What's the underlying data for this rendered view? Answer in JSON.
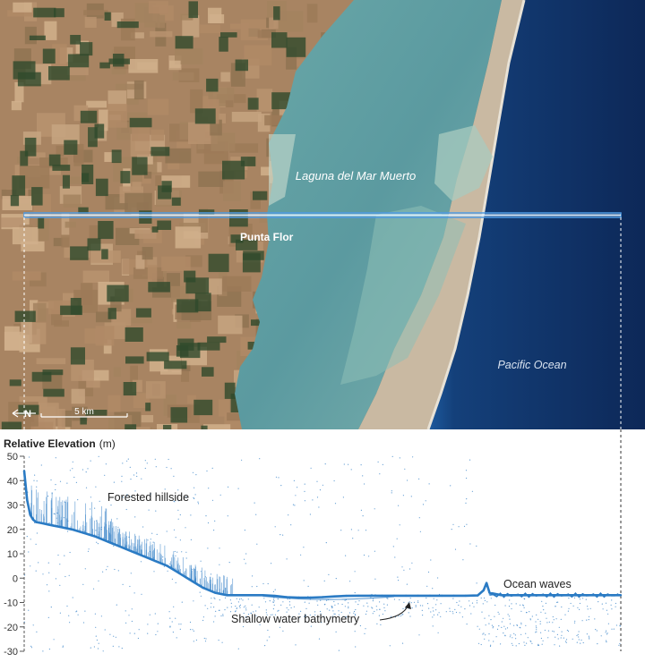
{
  "map": {
    "labels": {
      "lagoon": "Laguna del Mar Muerto",
      "town": "Punta Flor",
      "ocean": "Pacific Ocean"
    },
    "north_symbol": "N",
    "scale_bar_label": "5 km",
    "colors": {
      "land": "#a88462",
      "vegetation": "#2f4a2c",
      "lagoon": "#5f9fa2",
      "ocean": "#0e2a5c",
      "sandbar": "#c9b9a2",
      "transect": "#4f9be3"
    }
  },
  "chart_data": {
    "type": "scatter",
    "title": "Relative Elevation",
    "title_unit": "(m)",
    "ylim": [
      -30,
      50
    ],
    "yticks": [
      50,
      40,
      30,
      20,
      10,
      0,
      -10,
      -20,
      -30
    ],
    "xlim": [
      0,
      100
    ],
    "grid": false,
    "color": "#2b7bc4",
    "series": [
      {
        "x": [
          0,
          0.5,
          1,
          1.5,
          2,
          3,
          4,
          5,
          6,
          8,
          10,
          12,
          14,
          16,
          18,
          20,
          22,
          24,
          26,
          28,
          30,
          32,
          34,
          36,
          38,
          40,
          42,
          44,
          46,
          48,
          50,
          52,
          54,
          56,
          58,
          60,
          62,
          64,
          66,
          68,
          70,
          72,
          74,
          76,
          77,
          77.5,
          78,
          80,
          84,
          88,
          92,
          96,
          100
        ],
        "y": [
          44,
          32,
          26,
          24,
          23,
          22.5,
          22,
          21.5,
          21,
          20,
          18.5,
          17,
          15,
          13,
          11,
          9,
          7,
          5,
          2,
          -1,
          -4,
          -6,
          -7,
          -7,
          -7,
          -7,
          -7.3,
          -7.8,
          -8,
          -8,
          -7.8,
          -7.5,
          -7.3,
          -7.2,
          -7.2,
          -7.2,
          -7.2,
          -7.2,
          -7.2,
          -7.2,
          -7.2,
          -7.2,
          -7.2,
          -7.1,
          -5,
          -2,
          -6,
          -7,
          -7,
          -7,
          -7,
          -7,
          -7
        ]
      }
    ],
    "annotations": [
      "Forested hillside",
      "Shallow water bathymetry",
      "Ocean waves"
    ]
  }
}
